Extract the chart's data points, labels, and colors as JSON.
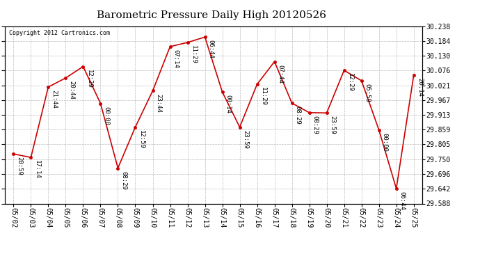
{
  "title": "Barometric Pressure Daily High 20120526",
  "copyright": "Copyright 2012 Cartronics.com",
  "x_labels": [
    "05/02",
    "05/03",
    "05/04",
    "05/05",
    "05/06",
    "05/07",
    "05/08",
    "05/09",
    "05/10",
    "05/11",
    "05/12",
    "05/13",
    "05/14",
    "05/15",
    "05/16",
    "05/17",
    "05/18",
    "05/19",
    "05/20",
    "05/21",
    "05/22",
    "05/23",
    "05/24",
    "05/25"
  ],
  "y_values": [
    29.77,
    29.757,
    30.015,
    30.048,
    30.09,
    29.955,
    29.718,
    29.868,
    30.001,
    30.163,
    30.178,
    30.198,
    29.997,
    29.868,
    30.025,
    30.108,
    29.956,
    29.921,
    29.92,
    30.076,
    30.038,
    29.858,
    29.643,
    30.058
  ],
  "annotations": [
    "20:59",
    "17:14",
    "21:44",
    "20:44",
    "12:29",
    "00:00",
    "08:29",
    "12:59",
    "23:44",
    "07:14",
    "11:29",
    "06:44",
    "00:14",
    "23:59",
    "11:29",
    "07:44",
    "08:29",
    "08:29",
    "23:59",
    "12:29",
    "05:59",
    "00:00",
    "06:44",
    "20:14"
  ],
  "line_color": "#cc0000",
  "marker_color": "#cc0000",
  "bg_color": "#ffffff",
  "grid_color": "#aaaaaa",
  "title_fontsize": 11,
  "annotation_fontsize": 6.5,
  "ylim_min": 29.588,
  "ylim_max": 30.238,
  "yticks": [
    29.588,
    29.642,
    29.696,
    29.75,
    29.805,
    29.859,
    29.913,
    29.967,
    30.021,
    30.076,
    30.13,
    30.184,
    30.238
  ]
}
